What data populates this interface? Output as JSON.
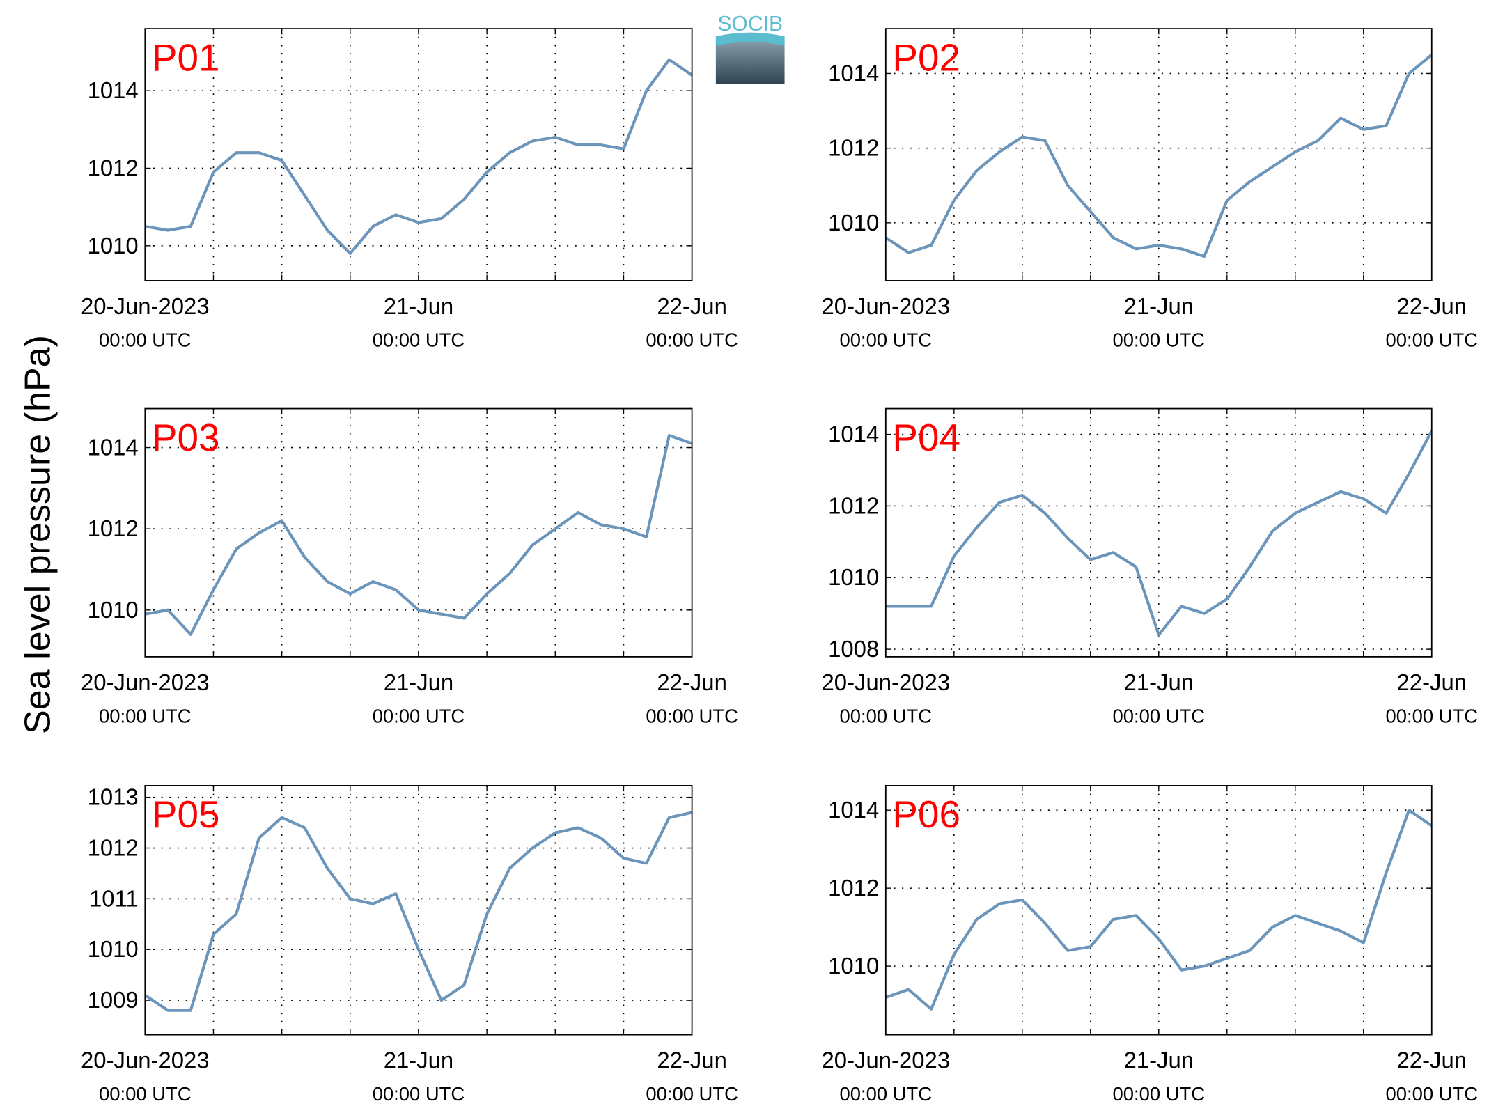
{
  "ylabel": "Sea level pressure (hPa)",
  "logo": "SOCIB",
  "chart_data": [
    {
      "type": "line",
      "title": "P01",
      "color": "#6b95ba",
      "x": [
        0,
        2,
        4,
        6,
        8,
        10,
        12,
        14,
        16,
        18,
        20,
        22,
        24,
        26,
        28,
        30,
        32,
        34,
        36,
        38,
        40,
        42,
        44,
        46,
        48
      ],
      "values": [
        1010.5,
        1010.4,
        1010.5,
        1011.9,
        1012.4,
        1012.4,
        1012.2,
        1011.3,
        1010.4,
        1009.8,
        1010.5,
        1010.8,
        1010.6,
        1010.7,
        1011.2,
        1011.9,
        1012.4,
        1012.7,
        1012.8,
        1012.6,
        1012.6,
        1012.5,
        1014.0,
        1014.8,
        1014.4
      ],
      "xlim": [
        0,
        48
      ],
      "xticks": [
        {
          "value": 0,
          "label": "20-Jun-2023\n00:00 UTC"
        },
        {
          "value": 24,
          "label": "21-Jun\n00:00 UTC"
        },
        {
          "value": 48,
          "label": "22-Jun\n00:00 UTC"
        }
      ],
      "xgrid": [
        6,
        12,
        18,
        24,
        30,
        36,
        42
      ],
      "ylim": [
        1009.1,
        1015.6
      ],
      "yticks": [
        1010,
        1012,
        1014
      ],
      "grid": true
    },
    {
      "type": "line",
      "title": "P02",
      "color": "#6b95ba",
      "x": [
        0,
        2,
        4,
        6,
        8,
        10,
        12,
        14,
        16,
        18,
        20,
        22,
        24,
        26,
        28,
        30,
        32,
        34,
        36,
        38,
        40,
        42,
        44,
        46,
        48
      ],
      "values": [
        1009.6,
        1009.2,
        1009.4,
        1010.6,
        1011.4,
        1011.9,
        1012.3,
        1012.2,
        1011.0,
        1010.3,
        1009.6,
        1009.3,
        1009.4,
        1009.3,
        1009.1,
        1010.6,
        1011.1,
        1011.5,
        1011.9,
        1012.2,
        1012.8,
        1012.5,
        1012.6,
        1014.0,
        1014.5
      ],
      "xlim": [
        0,
        48
      ],
      "xticks": [
        {
          "value": 0,
          "label": "20-Jun-2023\n00:00 UTC"
        },
        {
          "value": 24,
          "label": "21-Jun\n00:00 UTC"
        },
        {
          "value": 48,
          "label": "22-Jun\n00:00 UTC"
        }
      ],
      "xgrid": [
        6,
        12,
        18,
        24,
        30,
        36,
        42
      ],
      "ylim": [
        1008.45,
        1015.2
      ],
      "yticks": [
        1010,
        1012,
        1014
      ],
      "grid": true
    },
    {
      "type": "line",
      "title": "P03",
      "color": "#6b95ba",
      "x": [
        0,
        2,
        4,
        6,
        8,
        10,
        12,
        14,
        16,
        18,
        20,
        22,
        24,
        26,
        28,
        30,
        32,
        34,
        36,
        38,
        40,
        42,
        44,
        46,
        48
      ],
      "values": [
        1009.9,
        1010.0,
        1009.4,
        1010.5,
        1011.5,
        1011.9,
        1012.2,
        1011.3,
        1010.7,
        1010.4,
        1010.7,
        1010.5,
        1010.0,
        1009.9,
        1009.8,
        1010.4,
        1010.9,
        1011.6,
        1012.0,
        1012.4,
        1012.1,
        1012.0,
        1011.8,
        1014.3,
        1014.1
      ],
      "xlim": [
        0,
        48
      ],
      "xticks": [
        {
          "value": 0,
          "label": "20-Jun-2023\n00:00 UTC"
        },
        {
          "value": 24,
          "label": "21-Jun\n00:00 UTC"
        },
        {
          "value": 48,
          "label": "22-Jun\n00:00 UTC"
        }
      ],
      "xgrid": [
        6,
        12,
        18,
        24,
        30,
        36,
        42
      ],
      "ylim": [
        1008.85,
        1014.96
      ],
      "yticks": [
        1010,
        1012,
        1014
      ],
      "grid": true
    },
    {
      "type": "line",
      "title": "P04",
      "color": "#6b95ba",
      "x": [
        0,
        2,
        4,
        6,
        8,
        10,
        12,
        14,
        16,
        18,
        20,
        22,
        24,
        26,
        28,
        30,
        32,
        34,
        36,
        38,
        40,
        42,
        44,
        46,
        48
      ],
      "values": [
        1009.2,
        1009.2,
        1009.2,
        1010.6,
        1011.4,
        1012.1,
        1012.3,
        1011.8,
        1011.1,
        1010.5,
        1010.7,
        1010.3,
        1008.4,
        1009.2,
        1009.0,
        1009.4,
        1010.3,
        1011.3,
        1011.8,
        1012.1,
        1012.4,
        1012.2,
        1011.8,
        1012.9,
        1014.1
      ],
      "xlim": [
        0,
        48
      ],
      "xticks": [
        {
          "value": 0,
          "label": "20-Jun-2023\n00:00 UTC"
        },
        {
          "value": 24,
          "label": "21-Jun\n00:00 UTC"
        },
        {
          "value": 48,
          "label": "22-Jun\n00:00 UTC"
        }
      ],
      "xgrid": [
        6,
        12,
        18,
        24,
        30,
        36,
        42
      ],
      "ylim": [
        1007.79,
        1014.72
      ],
      "yticks": [
        1008,
        1010,
        1012,
        1014
      ],
      "grid": true
    },
    {
      "type": "line",
      "title": "P05",
      "color": "#6b95ba",
      "x": [
        0,
        2,
        4,
        6,
        8,
        10,
        12,
        14,
        16,
        18,
        20,
        22,
        24,
        26,
        28,
        30,
        32,
        34,
        36,
        38,
        40,
        42,
        44,
        46,
        48
      ],
      "values": [
        1009.1,
        1008.8,
        1008.8,
        1010.3,
        1010.7,
        1012.2,
        1012.6,
        1012.4,
        1011.6,
        1011.0,
        1010.9,
        1011.1,
        1010.0,
        1009.0,
        1009.3,
        1010.7,
        1011.6,
        1012.0,
        1012.3,
        1012.4,
        1012.2,
        1011.8,
        1011.7,
        1012.6,
        1012.7
      ],
      "xlim": [
        0,
        48
      ],
      "xticks": [
        {
          "value": 0,
          "label": "20-Jun-2023\n00:00 UTC"
        },
        {
          "value": 24,
          "label": "21-Jun\n00:00 UTC"
        },
        {
          "value": 48,
          "label": "22-Jun\n00:00 UTC"
        }
      ],
      "xgrid": [
        6,
        12,
        18,
        24,
        30,
        36,
        42
      ],
      "ylim": [
        1008.32,
        1013.23
      ],
      "yticks": [
        1009,
        1010,
        1011,
        1012,
        1013
      ],
      "grid": true
    },
    {
      "type": "line",
      "title": "P06",
      "color": "#6b95ba",
      "x": [
        0,
        2,
        4,
        6,
        8,
        10,
        12,
        14,
        16,
        18,
        20,
        22,
        24,
        26,
        28,
        30,
        32,
        34,
        36,
        38,
        40,
        42,
        44,
        46,
        48
      ],
      "values": [
        1009.2,
        1009.4,
        1008.9,
        1010.3,
        1011.2,
        1011.6,
        1011.7,
        1011.1,
        1010.4,
        1010.5,
        1011.2,
        1011.3,
        1010.7,
        1009.9,
        1010.0,
        1010.2,
        1010.4,
        1011.0,
        1011.3,
        1011.1,
        1010.9,
        1010.6,
        1012.4,
        1014.0,
        1013.6
      ],
      "xlim": [
        0,
        48
      ],
      "xticks": [
        {
          "value": 0,
          "label": "20-Jun-2023\n00:00 UTC"
        },
        {
          "value": 24,
          "label": "21-Jun\n00:00 UTC"
        },
        {
          "value": 48,
          "label": "22-Jun\n00:00 UTC"
        }
      ],
      "xgrid": [
        6,
        12,
        18,
        24,
        30,
        36,
        42
      ],
      "ylim": [
        1008.24,
        1014.63
      ],
      "yticks": [
        1010,
        1012,
        1014
      ],
      "grid": true
    }
  ]
}
